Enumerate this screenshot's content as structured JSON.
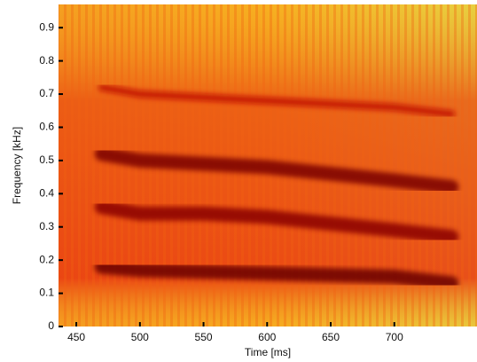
{
  "chart_data": {
    "type": "spectrogram",
    "x_label": "Time [ms]",
    "y_label": "Frequency [kHz]",
    "xlim": [
      436,
      765
    ],
    "ylim": [
      0,
      0.97
    ],
    "xticks": [
      450,
      500,
      550,
      600,
      650,
      700
    ],
    "yticks": [
      0,
      0.1,
      0.2,
      0.3,
      0.4,
      0.5,
      0.6,
      0.7,
      0.8,
      0.9
    ],
    "series": [
      {
        "color": "#7a0000",
        "x": [
          470,
          500,
          550,
          600,
          650,
          700,
          745
        ],
        "values": [
          0.52,
          0.5,
          0.49,
          0.48,
          0.46,
          0.44,
          0.42
        ]
      },
      {
        "color": "#8a0000",
        "x": [
          470,
          500,
          550,
          600,
          650,
          700,
          745
        ],
        "values": [
          0.36,
          0.34,
          0.34,
          0.33,
          0.31,
          0.29,
          0.27
        ]
      },
      {
        "color": "#6a0000",
        "x": [
          470,
          500,
          550,
          600,
          650,
          700,
          745
        ],
        "values": [
          0.18,
          0.17,
          0.165,
          0.16,
          0.155,
          0.15,
          0.13
        ]
      },
      {
        "color": "#c01000",
        "x": [
          470,
          500,
          550,
          600,
          650,
          700,
          745
        ],
        "values": [
          0.72,
          0.7,
          0.69,
          0.68,
          0.67,
          0.66,
          0.64
        ]
      }
    ]
  }
}
